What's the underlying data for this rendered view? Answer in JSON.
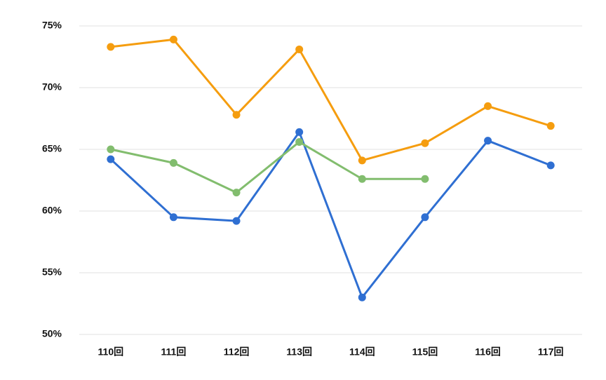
{
  "chart_data": {
    "type": "line",
    "categories": [
      "110回",
      "111回",
      "112回",
      "113回",
      "114回",
      "115回",
      "116回",
      "117回"
    ],
    "series": [
      {
        "color": "#f59d0f",
        "values": [
          73.3,
          73.9,
          67.8,
          73.1,
          64.1,
          65.5,
          68.5,
          66.9
        ]
      },
      {
        "color": "#2f6fd2",
        "values": [
          64.2,
          59.5,
          59.2,
          66.4,
          53.0,
          59.5,
          65.7,
          63.7
        ]
      },
      {
        "color": "#82bd6e",
        "values": [
          65.0,
          63.9,
          61.5,
          65.6,
          62.6,
          62.6,
          null,
          null
        ]
      }
    ],
    "ylim": [
      50,
      75
    ],
    "yticks": [
      {
        "value": 50,
        "label": "50%"
      },
      {
        "value": 55,
        "label": "55%"
      },
      {
        "value": 60,
        "label": "60%"
      },
      {
        "value": 65,
        "label": "65%"
      },
      {
        "value": 70,
        "label": "70%"
      },
      {
        "value": 75,
        "label": "75%"
      }
    ],
    "grid": true
  }
}
